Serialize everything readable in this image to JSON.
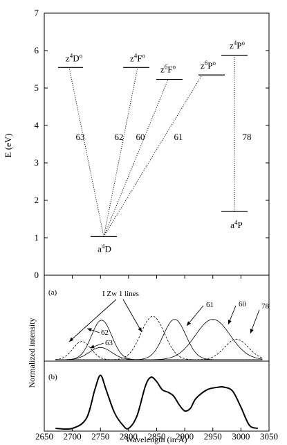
{
  "chart_data": [
    {
      "type": "level-diagram",
      "ylabel": "E (eV)",
      "ylim": [
        0,
        7
      ],
      "yticks": [
        "0",
        "1",
        "2",
        "3",
        "4",
        "5",
        "6",
        "7"
      ],
      "levels": [
        {
          "term": "z",
          "mult": "4",
          "letter": "D",
          "parity": "o",
          "energy": 5.55
        },
        {
          "term": "z",
          "mult": "4",
          "letter": "F",
          "parity": "o",
          "energy": 5.55
        },
        {
          "term": "z",
          "mult": "6",
          "letter": "F",
          "parity": "o",
          "energy": 5.23
        },
        {
          "term": "z",
          "mult": "6",
          "letter": "P",
          "parity": "o",
          "energy": 5.35
        },
        {
          "term": "z",
          "mult": "4",
          "letter": "P",
          "parity": "o",
          "energy": 5.87
        },
        {
          "term": "a",
          "mult": "4",
          "letter": "D",
          "parity": "",
          "energy": 1.03
        },
        {
          "term": "a",
          "mult": "4",
          "letter": "P",
          "parity": "",
          "energy": 1.7
        }
      ],
      "transitions": [
        {
          "label": "63",
          "from": "a4D",
          "to": "z4Do"
        },
        {
          "label": "62",
          "from": "a4D",
          "to": "z4Fo"
        },
        {
          "label": "60",
          "from": "a4D",
          "to": "z6Fo"
        },
        {
          "label": "61",
          "from": "a4D",
          "to": "z6Po"
        },
        {
          "label": "78",
          "from": "a4P",
          "to": "z4Po"
        }
      ]
    },
    {
      "type": "line",
      "xlabel": "Wavelength (in Å)",
      "ylabel": "Normalized intensity",
      "xlim": [
        2650,
        3050
      ],
      "xticks": [
        "2650",
        "2700",
        "2750",
        "2800",
        "2850",
        "2900",
        "2950",
        "3000",
        "3050"
      ],
      "panel_a_label": "(a)",
      "panel_b_label": "(b)",
      "annotation": "I Zw 1 lines",
      "series": [
        {
          "name": "63",
          "center": 2750,
          "amplitude": 0.16,
          "width": 20,
          "style": "solid"
        },
        {
          "name": "62",
          "center": 2752,
          "amplitude": 0.52,
          "width": 18,
          "style": "solid"
        },
        {
          "name": "61",
          "center": 2882,
          "amplitude": 0.53,
          "width": 20,
          "style": "solid"
        },
        {
          "name": "60",
          "center": 2950,
          "amplitude": 0.53,
          "width": 31,
          "style": "solid"
        },
        {
          "center": 2717,
          "amplitude": 0.24,
          "width": 16,
          "style": "dashed"
        },
        {
          "center": 2843,
          "amplitude": 0.57,
          "width": 21,
          "style": "dashed"
        },
        {
          "name": "78",
          "center": 2992,
          "amplitude": 0.27,
          "width": 21,
          "style": "dashed"
        }
      ],
      "panel_b": {
        "style": "thick-solid",
        "x": [
          2670,
          2700,
          2725,
          2740,
          2750,
          2760,
          2775,
          2790,
          2800,
          2815,
          2830,
          2840,
          2850,
          2860,
          2870,
          2880,
          2890,
          2900,
          2910,
          2920,
          2940,
          2960,
          2970,
          2985,
          3000,
          3015,
          3030
        ],
        "y": [
          0.0,
          0.0,
          0.16,
          0.62,
          0.85,
          0.62,
          0.25,
          0.05,
          0.0,
          0.2,
          0.68,
          0.82,
          0.75,
          0.62,
          0.58,
          0.52,
          0.38,
          0.28,
          0.32,
          0.48,
          0.62,
          0.66,
          0.66,
          0.6,
          0.34,
          0.05,
          0.0
        ]
      }
    }
  ]
}
